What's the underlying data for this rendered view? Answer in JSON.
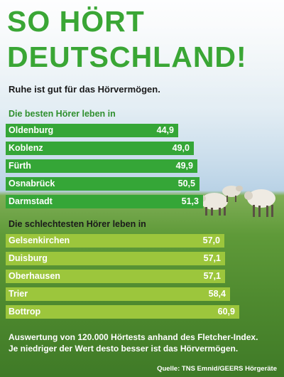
{
  "title_line1": "SO HÖRT",
  "title_line2": "DEUTSCHLAND!",
  "subtitle": "Ruhe ist gut für das Hörvermögen.",
  "footer_line1": "Auswertung von 120.000 Hörtests anhand des Fletcher-Index.",
  "footer_line2": "Je niedriger der Wert desto besser ist das Hörvermögen.",
  "source": "Quelle: TNS Emnid/GEERS Hörgeräte",
  "colors": {
    "title": "#3aa635",
    "best_bar": "#35a637",
    "worst_bar": "#9cc63c"
  },
  "chart_data": [
    {
      "type": "bar",
      "orientation": "horizontal",
      "title": "Die besten Hörer leben in",
      "categories": [
        "Oldenburg",
        "Koblenz",
        "Fürth",
        "Osnabrück",
        "Darmstadt"
      ],
      "values": [
        44.9,
        49.0,
        49.9,
        50.5,
        51.3
      ],
      "labels": [
        "44,9",
        "49,0",
        "49,9",
        "50,5",
        "51,3"
      ],
      "color": "#35a637"
    },
    {
      "type": "bar",
      "orientation": "horizontal",
      "title": "Die schlechtesten Hörer leben in",
      "categories": [
        "Gelsenkirchen",
        "Duisburg",
        "Oberhausen",
        "Trier",
        "Bottrop"
      ],
      "values": [
        57.0,
        57.1,
        57.1,
        58.4,
        60.9
      ],
      "labels": [
        "57,0",
        "57,1",
        "57,1",
        "58,4",
        "60,9"
      ],
      "color": "#9cc63c"
    }
  ]
}
